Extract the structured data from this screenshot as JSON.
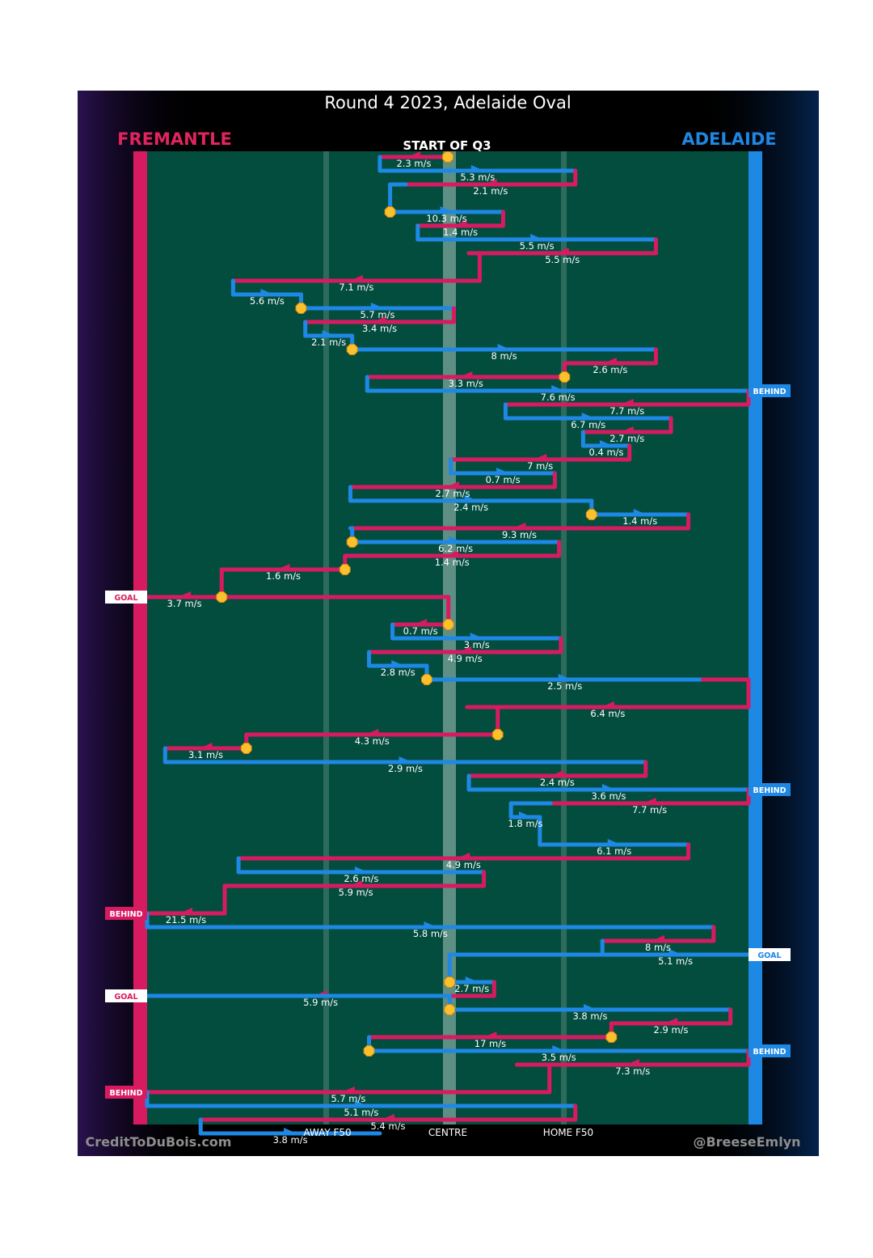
{
  "chart_data": {
    "type": "chain-flow",
    "title": "Round 4 2023, Adelaide Oval",
    "team_left": "FREMANTLE",
    "team_right": "ADELAIDE",
    "start_label": "START OF Q3",
    "x_labels": [
      "AWAY F50",
      "CENTRE",
      "HOME F50"
    ],
    "x_range": [
      0,
      100
    ],
    "x_label_positions": [
      30,
      50,
      70
    ],
    "credit_left": "CreditToDuBois.com",
    "credit_right": "@BreeseEmlyn",
    "colors": {
      "fremantle": "#d81b60",
      "adelaide": "#1e88e5",
      "field": "#034d3f",
      "mark": "#fbc02d"
    },
    "possessions": [
      {
        "team": "fremantle",
        "from": 50.0,
        "to": 38.7,
        "row": 1,
        "speed": "2.3 m/s",
        "mark_start": true
      },
      {
        "team": "adelaide",
        "from": 38.7,
        "to": 71.2,
        "row": 2,
        "speed": "5.3 m/s"
      },
      {
        "team": "fremantle",
        "from": 71.2,
        "to": 43.0,
        "row": 3,
        "speed": "2.1 m/s"
      },
      {
        "team": "adelaide",
        "from": 40.4,
        "to": 59.2,
        "row": 5,
        "speed": "10.3 m/s",
        "mark_start": true
      },
      {
        "team": "fremantle",
        "from": 59.2,
        "to": 45.0,
        "row": 6,
        "speed": "1.4 m/s"
      },
      {
        "team": "adelaide",
        "from": 45.0,
        "to": 84.6,
        "row": 7,
        "speed": "5.5 m/s"
      },
      {
        "team": "fremantle",
        "from": 84.6,
        "to": 53.5,
        "row": 8,
        "speed": "5.5 m/s"
      },
      {
        "team": "fremantle",
        "from": 55.3,
        "to": 14.3,
        "row": 10,
        "speed": "7.1 m/s"
      },
      {
        "team": "adelaide",
        "from": 14.3,
        "to": 25.6,
        "row": 11,
        "speed": "5.6 m/s"
      },
      {
        "team": "adelaide",
        "from": 25.6,
        "to": 51.0,
        "row": 12,
        "speed": "5.7 m/s",
        "mark_start": true
      },
      {
        "team": "fremantle",
        "from": 51.0,
        "to": 26.3,
        "row": 13,
        "speed": "3.4 m/s"
      },
      {
        "team": "adelaide",
        "from": 26.3,
        "to": 34.1,
        "row": 14,
        "speed": "2.1 m/s"
      },
      {
        "team": "adelaide",
        "from": 34.1,
        "to": 84.6,
        "row": 15,
        "speed": "8 m/s",
        "mark_start": true
      },
      {
        "team": "fremantle",
        "from": 84.6,
        "to": 69.4,
        "row": 16,
        "speed": "2.6 m/s"
      },
      {
        "team": "fremantle",
        "from": 69.4,
        "to": 36.6,
        "row": 17,
        "speed": "3.3 m/s",
        "mark_start": true
      },
      {
        "team": "adelaide",
        "from": 36.6,
        "to": 100.0,
        "row": 18,
        "speed": "7.6 m/s",
        "outcome": "BEHIND"
      },
      {
        "team": "fremantle",
        "from": 100.0,
        "to": 59.6,
        "row": 19,
        "speed": "7.7 m/s"
      },
      {
        "team": "adelaide",
        "from": 59.6,
        "to": 87.1,
        "row": 20,
        "speed": "6.7 m/s"
      },
      {
        "team": "fremantle",
        "from": 87.1,
        "to": 72.5,
        "row": 21,
        "speed": "2.7 m/s"
      },
      {
        "team": "adelaide",
        "from": 72.5,
        "to": 80.2,
        "row": 22,
        "speed": "0.4 m/s"
      },
      {
        "team": "fremantle",
        "from": 80.2,
        "to": 50.5,
        "row": 23,
        "speed": "7 m/s"
      },
      {
        "team": "adelaide",
        "from": 50.5,
        "to": 67.8,
        "row": 24,
        "speed": "0.7 m/s"
      },
      {
        "team": "fremantle",
        "from": 67.8,
        "to": 33.8,
        "row": 25,
        "speed": "2.7 m/s"
      },
      {
        "team": "adelaide",
        "from": 33.8,
        "to": 73.9,
        "row": 26,
        "speed": "2.4 m/s"
      },
      {
        "team": "adelaide",
        "from": 73.9,
        "to": 90.0,
        "row": 27,
        "speed": "1.4 m/s",
        "mark_start": true
      },
      {
        "team": "fremantle",
        "from": 90.0,
        "to": 33.8,
        "row": 28,
        "speed": "9.3 m/s"
      },
      {
        "team": "adelaide",
        "from": 34.1,
        "to": 68.5,
        "row": 29,
        "speed": "6.2 m/s",
        "mark_start": true
      },
      {
        "team": "fremantle",
        "from": 68.5,
        "to": 32.9,
        "row": 30,
        "speed": "1.4 m/s"
      },
      {
        "team": "fremantle",
        "from": 32.9,
        "to": 12.4,
        "row": 31,
        "speed": "1.6 m/s",
        "mark_start": true
      },
      {
        "team": "fremantle",
        "from": 12.4,
        "to": 0.0,
        "row": 33,
        "speed": "3.7 m/s",
        "mark_start": true,
        "outcome": "GOAL"
      },
      {
        "team": "fremantle",
        "from": 50.1,
        "to": 40.8,
        "row": 35,
        "speed": "0.7 m/s",
        "mark_start": true
      },
      {
        "team": "adelaide",
        "from": 40.8,
        "to": 68.8,
        "row": 36,
        "speed": "3 m/s"
      },
      {
        "team": "fremantle",
        "from": 68.8,
        "to": 36.9,
        "row": 37,
        "speed": "4.9 m/s"
      },
      {
        "team": "adelaide",
        "from": 36.9,
        "to": 46.5,
        "row": 38,
        "speed": "2.8 m/s"
      },
      {
        "team": "adelaide",
        "from": 46.5,
        "to": 92.4,
        "row": 39,
        "speed": "2.5 m/s",
        "mark_start": true
      },
      {
        "team": "fremantle",
        "from": 100.0,
        "to": 53.2,
        "row": 41,
        "speed": "6.4 m/s"
      },
      {
        "team": "fremantle",
        "from": 58.3,
        "to": 16.5,
        "row": 43,
        "speed": "4.3 m/s",
        "mark_start": true
      },
      {
        "team": "fremantle",
        "from": 16.5,
        "to": 3.0,
        "row": 44,
        "speed": "3.1 m/s",
        "mark_start": true
      },
      {
        "team": "adelaide",
        "from": 3.0,
        "to": 82.9,
        "row": 45,
        "speed": "2.9 m/s"
      },
      {
        "team": "fremantle",
        "from": 82.9,
        "to": 53.5,
        "row": 46,
        "speed": "2.4 m/s"
      },
      {
        "team": "adelaide",
        "from": 53.5,
        "to": 100.0,
        "row": 47,
        "speed": "3.6 m/s",
        "outcome": "BEHIND"
      },
      {
        "team": "fremantle",
        "from": 100.0,
        "to": 67.1,
        "row": 48,
        "speed": "7.7 m/s"
      },
      {
        "team": "adelaide",
        "from": 60.5,
        "to": 65.3,
        "row": 49,
        "speed": "1.8 m/s"
      },
      {
        "team": "adelaide",
        "from": 65.3,
        "to": 90.0,
        "row": 51,
        "speed": "6.1 m/s"
      },
      {
        "team": "fremantle",
        "from": 90.0,
        "to": 15.2,
        "row": 52,
        "speed": "4.9 m/s"
      },
      {
        "team": "adelaide",
        "from": 15.2,
        "to": 56.0,
        "row": 53,
        "speed": "2.6 m/s"
      },
      {
        "team": "fremantle",
        "from": 56.0,
        "to": 13.4,
        "row": 54,
        "speed": "5.9 m/s"
      },
      {
        "team": "fremantle",
        "from": 12.9,
        "to": 0.0,
        "row": 56,
        "speed": "21.5 m/s",
        "outcome": "BEHIND"
      },
      {
        "team": "adelaide",
        "from": 0.0,
        "to": 94.2,
        "row": 57,
        "speed": "5.8 m/s"
      },
      {
        "team": "fremantle",
        "from": 94.2,
        "to": 75.7,
        "row": 58,
        "speed": "8 m/s"
      },
      {
        "team": "adelaide",
        "from": 75.7,
        "to": 100.0,
        "row": 59,
        "speed": "5.1 m/s",
        "outcome": "GOAL"
      },
      {
        "team": "adelaide",
        "from": 50.3,
        "to": 57.7,
        "row": 61,
        "speed": "2.7 m/s",
        "mark_start": true
      },
      {
        "team": "fremantle",
        "from": 57.7,
        "to": 0.0,
        "row": 62,
        "speed": "5.9 m/s",
        "outcome": "GOAL"
      },
      {
        "team": "adelaide",
        "from": 50.3,
        "to": 97.0,
        "row": 63,
        "speed": "3.8 m/s",
        "mark_start": true
      },
      {
        "team": "fremantle",
        "from": 97.0,
        "to": 77.2,
        "row": 64,
        "speed": "2.9 m/s"
      },
      {
        "team": "fremantle",
        "from": 77.2,
        "to": 36.9,
        "row": 65,
        "speed": "17 m/s",
        "mark_start": true
      },
      {
        "team": "adelaide",
        "from": 36.9,
        "to": 100.0,
        "row": 66,
        "speed": "3.5 m/s",
        "mark_start": true,
        "outcome": "BEHIND"
      },
      {
        "team": "fremantle",
        "from": 100.0,
        "to": 61.5,
        "row": 67,
        "speed": "7.3 m/s"
      },
      {
        "team": "fremantle",
        "from": 66.9,
        "to": 0.0,
        "row": 69,
        "speed": "5.7 m/s",
        "outcome": "BEHIND"
      },
      {
        "team": "adelaide",
        "from": 0.0,
        "to": 71.2,
        "row": 70,
        "speed": "5.1 m/s"
      },
      {
        "team": "fremantle",
        "from": 71.2,
        "to": 8.9,
        "row": 71,
        "speed": "5.4 m/s"
      },
      {
        "team": "adelaide",
        "from": 8.9,
        "to": 38.7,
        "row": 72,
        "speed": "3.8 m/s"
      }
    ]
  }
}
